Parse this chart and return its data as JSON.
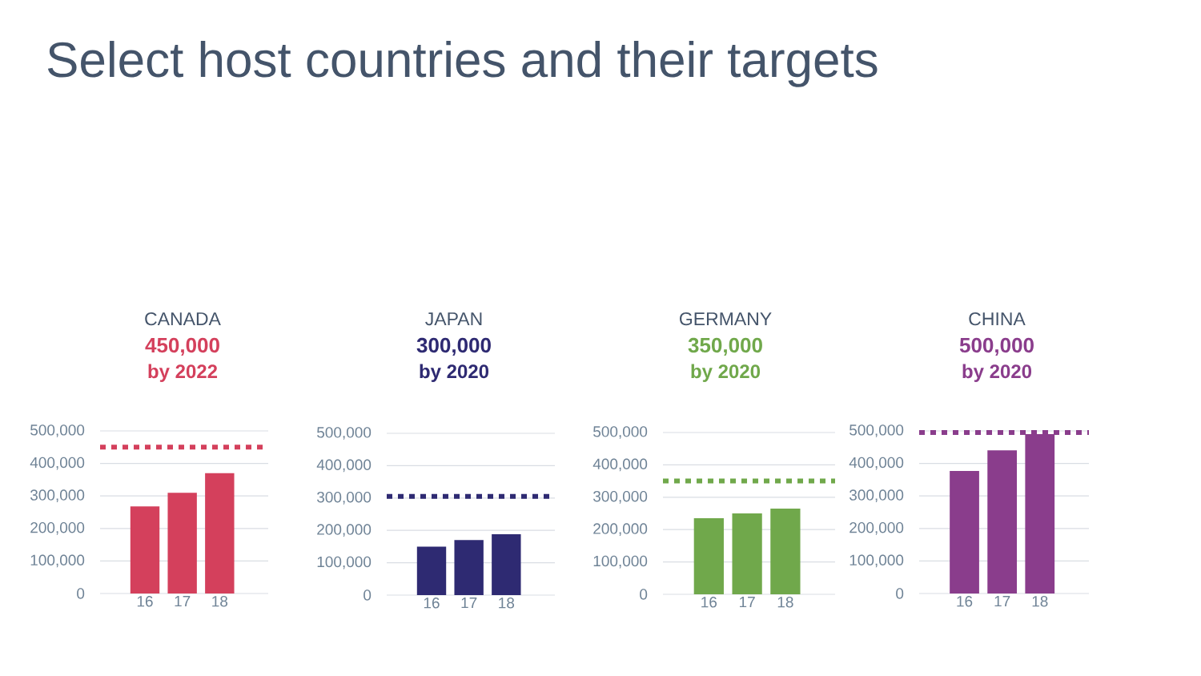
{
  "chart_data": [
    {
      "type": "other",
      "title": "Select host countries and their targets"
    },
    {
      "type": "bar",
      "title": "CANADA",
      "subtitle": "450,000",
      "annotations": [
        "by 2022"
      ],
      "categories": [
        "16",
        "17",
        "18"
      ],
      "values": [
        268000,
        310000,
        370000
      ],
      "color": "#d4405c",
      "ylim": [
        0,
        500000
      ],
      "yticks": [
        0,
        {
          "value": 100000,
          "label": "100,000"
        },
        {
          "value": 200000,
          "label": "200,000"
        },
        {
          "value": 300000,
          "label": "300,000"
        },
        {
          "value": 400000,
          "label": "400,000"
        },
        {
          "value": 500000,
          "label": "500,000"
        }
      ],
      "grid": "y",
      "ref_lines": [
        {
          "axis": "y",
          "value": 450000,
          "color": "#d4405c",
          "line_style": "dotted"
        }
      ]
    },
    {
      "type": "bar",
      "title": "JAPAN",
      "subtitle": "300,000",
      "annotations": [
        "by 2020"
      ],
      "categories": [
        "16",
        "17",
        "18"
      ],
      "values": [
        150000,
        170000,
        188000
      ],
      "color": "#2e2a72",
      "ylim": [
        0,
        500000
      ],
      "yticks": [
        0,
        {
          "value": 100000,
          "label": "100,000"
        },
        {
          "value": 200000,
          "label": "200,000"
        },
        {
          "value": 300000,
          "label": "300,000"
        },
        {
          "value": 400000,
          "label": "400,000"
        },
        {
          "value": 500000,
          "label": "500,000"
        }
      ],
      "grid": "y",
      "ref_lines": [
        {
          "axis": "y",
          "value": 305000,
          "color": "#2e2a72",
          "line_style": "dotted"
        }
      ]
    },
    {
      "type": "bar",
      "title": "GERMANY",
      "subtitle": "350,000",
      "annotations": [
        "by 2020"
      ],
      "categories": [
        "16",
        "17",
        "18"
      ],
      "values": [
        235000,
        250000,
        265000
      ],
      "color": "#70a84b",
      "ylim": [
        0,
        500000
      ],
      "yticks": [
        0,
        {
          "value": 100000,
          "label": "100,000"
        },
        {
          "value": 200000,
          "label": "200,000"
        },
        {
          "value": 300000,
          "label": "300,000"
        },
        {
          "value": 400000,
          "label": "400,000"
        },
        {
          "value": 500000,
          "label": "500,000"
        }
      ],
      "grid": "y",
      "ref_lines": [
        {
          "axis": "y",
          "value": 350000,
          "color": "#70a84b",
          "line_style": "dotted"
        }
      ]
    },
    {
      "type": "bar",
      "title": "CHINA",
      "subtitle": "500,000",
      "annotations": [
        "by 2020"
      ],
      "categories": [
        "16",
        "17",
        "18"
      ],
      "values": [
        377000,
        440000,
        490000
      ],
      "color": "#8a3d8c",
      "ylim": [
        0,
        500000
      ],
      "yticks": [
        0,
        {
          "value": 100000,
          "label": "100,000"
        },
        {
          "value": 200000,
          "label": "200,000"
        },
        {
          "value": 300000,
          "label": "300,000"
        },
        {
          "value": 400000,
          "label": "400,000"
        },
        {
          "value": 500000,
          "label": "500,000"
        }
      ],
      "grid": "y",
      "ref_lines": [
        {
          "axis": "y",
          "value": 495000,
          "color": "#8a3d8c",
          "line_style": "dotted"
        }
      ]
    }
  ]
}
